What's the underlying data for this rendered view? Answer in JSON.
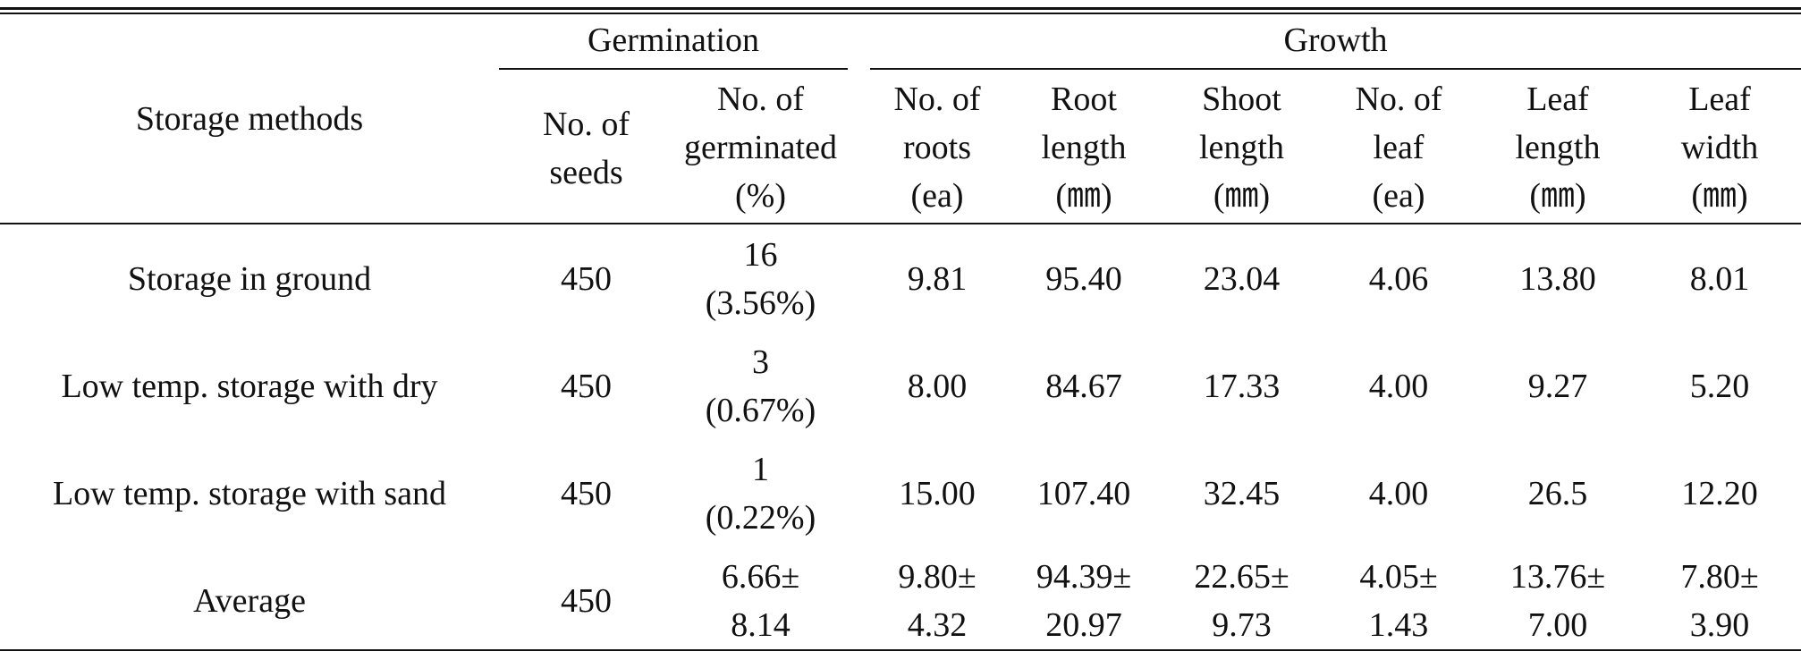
{
  "table": {
    "header": {
      "row_header": "Storage  methods",
      "groups": {
        "germination": "Germination",
        "growth": "Growth"
      },
      "columns": [
        [
          "No.  of",
          "seeds"
        ],
        [
          "No.  of",
          "germinated",
          "(%)"
        ],
        [
          "No.  of",
          "roots",
          "(ea)"
        ],
        [
          "Root",
          "length",
          "(㎜)"
        ],
        [
          "Shoot",
          "length",
          "(㎜)"
        ],
        [
          "No.  of",
          "leaf",
          "(ea)"
        ],
        [
          "Leaf",
          "length",
          "(㎜)"
        ],
        [
          "Leaf",
          "width",
          "(㎜)"
        ]
      ]
    },
    "rows": [
      {
        "method": "Storage  in  ground",
        "seeds": "450",
        "germinated": [
          "16",
          "(3.56%)"
        ],
        "roots": [
          "9.81"
        ],
        "root_length": [
          "95.40"
        ],
        "shoot_length": [
          "23.04"
        ],
        "leaf": [
          "4.06"
        ],
        "leaf_length": [
          "13.80"
        ],
        "leaf_width": [
          "8.01"
        ]
      },
      {
        "method": "Low  temp.  storage  with  dry",
        "seeds": "450",
        "germinated": [
          "3",
          "(0.67%)"
        ],
        "roots": [
          "8.00"
        ],
        "root_length": [
          "84.67"
        ],
        "shoot_length": [
          "17.33"
        ],
        "leaf": [
          "4.00"
        ],
        "leaf_length": [
          "9.27"
        ],
        "leaf_width": [
          "5.20"
        ]
      },
      {
        "method": "Low  temp.  storage  with  sand",
        "seeds": "450",
        "germinated": [
          "1",
          "(0.22%)"
        ],
        "roots": [
          "15.00"
        ],
        "root_length": [
          "107.40"
        ],
        "shoot_length": [
          "32.45"
        ],
        "leaf": [
          "4.00"
        ],
        "leaf_length": [
          "26.5"
        ],
        "leaf_width": [
          "12.20"
        ]
      },
      {
        "method": "Average",
        "seeds": "450",
        "germinated": [
          "6.66±",
          "8.14"
        ],
        "roots": [
          "9.80±",
          "4.32"
        ],
        "root_length": [
          "94.39±",
          "20.97"
        ],
        "shoot_length": [
          "22.65±",
          "9.73"
        ],
        "leaf": [
          "4.05±",
          "1.43"
        ],
        "leaf_length": [
          "13.76±",
          "7.00"
        ],
        "leaf_width": [
          "7.80±",
          "3.90"
        ]
      }
    ]
  }
}
